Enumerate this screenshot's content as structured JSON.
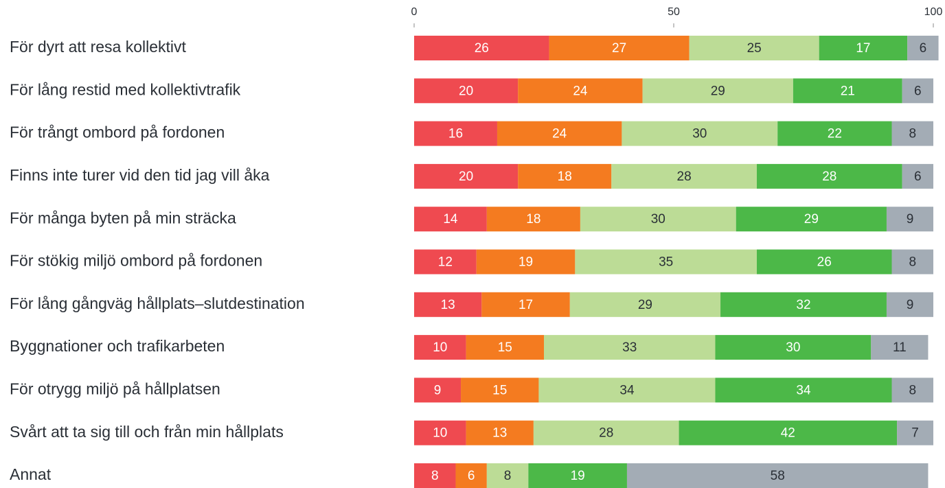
{
  "chart_data": {
    "type": "bar",
    "orientation": "horizontal",
    "stacked": true,
    "categories": [
      "För dyrt att resa kollektivt",
      "För lång restid med kollektivtrafik",
      "För trångt ombord på fordonen",
      "Finns inte turer vid den tid jag vill åka",
      "För många byten på min sträcka",
      "För stökig miljö ombord på fordonen",
      "För lång gångväg hållplats–slutdestination",
      "Byggnationer och trafikarbeten",
      "För otrygg miljö på hållplatsen",
      "Svårt att ta sig till och från min hållplats",
      "Annat"
    ],
    "series": [
      {
        "color": "#ef4a50",
        "values": [
          26,
          20,
          16,
          20,
          14,
          12,
          13,
          10,
          9,
          10,
          8
        ]
      },
      {
        "color": "#f47b20",
        "values": [
          27,
          24,
          24,
          18,
          18,
          19,
          17,
          15,
          15,
          13,
          6
        ]
      },
      {
        "color": "#bcdc96",
        "values": [
          25,
          29,
          30,
          28,
          30,
          35,
          29,
          33,
          34,
          28,
          8
        ]
      },
      {
        "color": "#4cb848",
        "values": [
          17,
          21,
          22,
          28,
          29,
          26,
          32,
          30,
          34,
          42,
          19
        ]
      },
      {
        "color": "#a3acb5",
        "values": [
          6,
          6,
          8,
          6,
          9,
          8,
          9,
          11,
          8,
          7,
          58
        ]
      }
    ],
    "xlim": [
      0,
      100
    ],
    "xticks": [
      0,
      50,
      100
    ]
  }
}
